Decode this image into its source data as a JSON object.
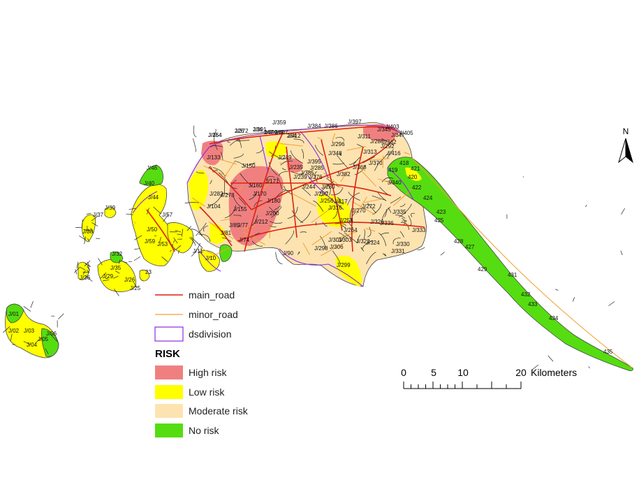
{
  "colors": {
    "high": "#f08080",
    "low": "#ffff00",
    "moderate": "#fde3b0",
    "none": "#55dd11",
    "main_road": "#dd2211",
    "minor_road": "#f0a030",
    "dsdivision": "#8a2be2",
    "boundary": "#222222"
  },
  "north_arrow": {
    "label": "N",
    "icon": "north-arrow-icon"
  },
  "legend": {
    "layers": [
      {
        "key": "main_road",
        "label": "main_road",
        "symbol": "line"
      },
      {
        "key": "minor_road",
        "label": "minor_road",
        "symbol": "line"
      },
      {
        "key": "dsdivision",
        "label": "dsdivision",
        "symbol": "hollow-box"
      }
    ],
    "risk_title": "RISK",
    "risk_classes": [
      {
        "key": "high",
        "label": "High risk"
      },
      {
        "key": "low",
        "label": "Low risk"
      },
      {
        "key": "moderate",
        "label": "Moderate risk"
      },
      {
        "key": "none",
        "label": "No risk"
      }
    ]
  },
  "scale_bar": {
    "ticks": [
      "0",
      "5",
      "10",
      "20"
    ],
    "unit": "Kilometers"
  },
  "division_labels": [
    "J/154",
    "226",
    "234",
    "247",
    "249",
    "254",
    "J/384",
    "J/386",
    "J/397",
    "J/403",
    "J/405",
    "J/416",
    "418",
    "419",
    "421",
    "420",
    "422",
    "424",
    "423",
    "425",
    "428",
    "427",
    "429",
    "431",
    "432",
    "433",
    "434",
    "435",
    "J/382",
    "J/368",
    "J/370",
    "J/340",
    "J/335",
    "J/333",
    "J/330",
    "J/331",
    "J/317",
    "J/316",
    "J/299",
    "J/280",
    "J/276",
    "J/285",
    "J/46",
    "J/40",
    "J/44",
    "J/39",
    "J/37",
    "J/38",
    "J/57",
    "J/50",
    "J/59",
    "J/53",
    "J/10",
    "J/11",
    "J/32",
    "J/35",
    "J/36",
    "J/25",
    "J/26",
    "J/29",
    "23",
    "J/01",
    "J/02",
    "J/03",
    "J/04",
    "J/05",
    "J/06",
    "J/81",
    "J/85",
    "J/77",
    "J/74",
    "J/90",
    "J/298",
    "J/306",
    "J/303",
    "J/301",
    "J/322",
    "J/324",
    "J/326",
    "J/336",
    "J/348",
    "J/359",
    "J/395",
    "J/385",
    "J/282",
    "J/278",
    "J/155",
    "J/104",
    "J/133",
    "J/150",
    "J/160",
    "J/170",
    "J/171",
    "J/180",
    "J/200",
    "J/212",
    "J/219",
    "J/235",
    "J/239",
    "J/244",
    "J/250",
    "J/256",
    "J/258",
    "J/264",
    "J/270",
    "J/272",
    "J/288",
    "J/292",
    "J/296",
    "J/311",
    "J/313",
    "J/345",
    "J/347",
    "J/362",
    "J/364",
    "J/372",
    "J/391",
    "J/399",
    "J/407",
    "J/412"
  ]
}
